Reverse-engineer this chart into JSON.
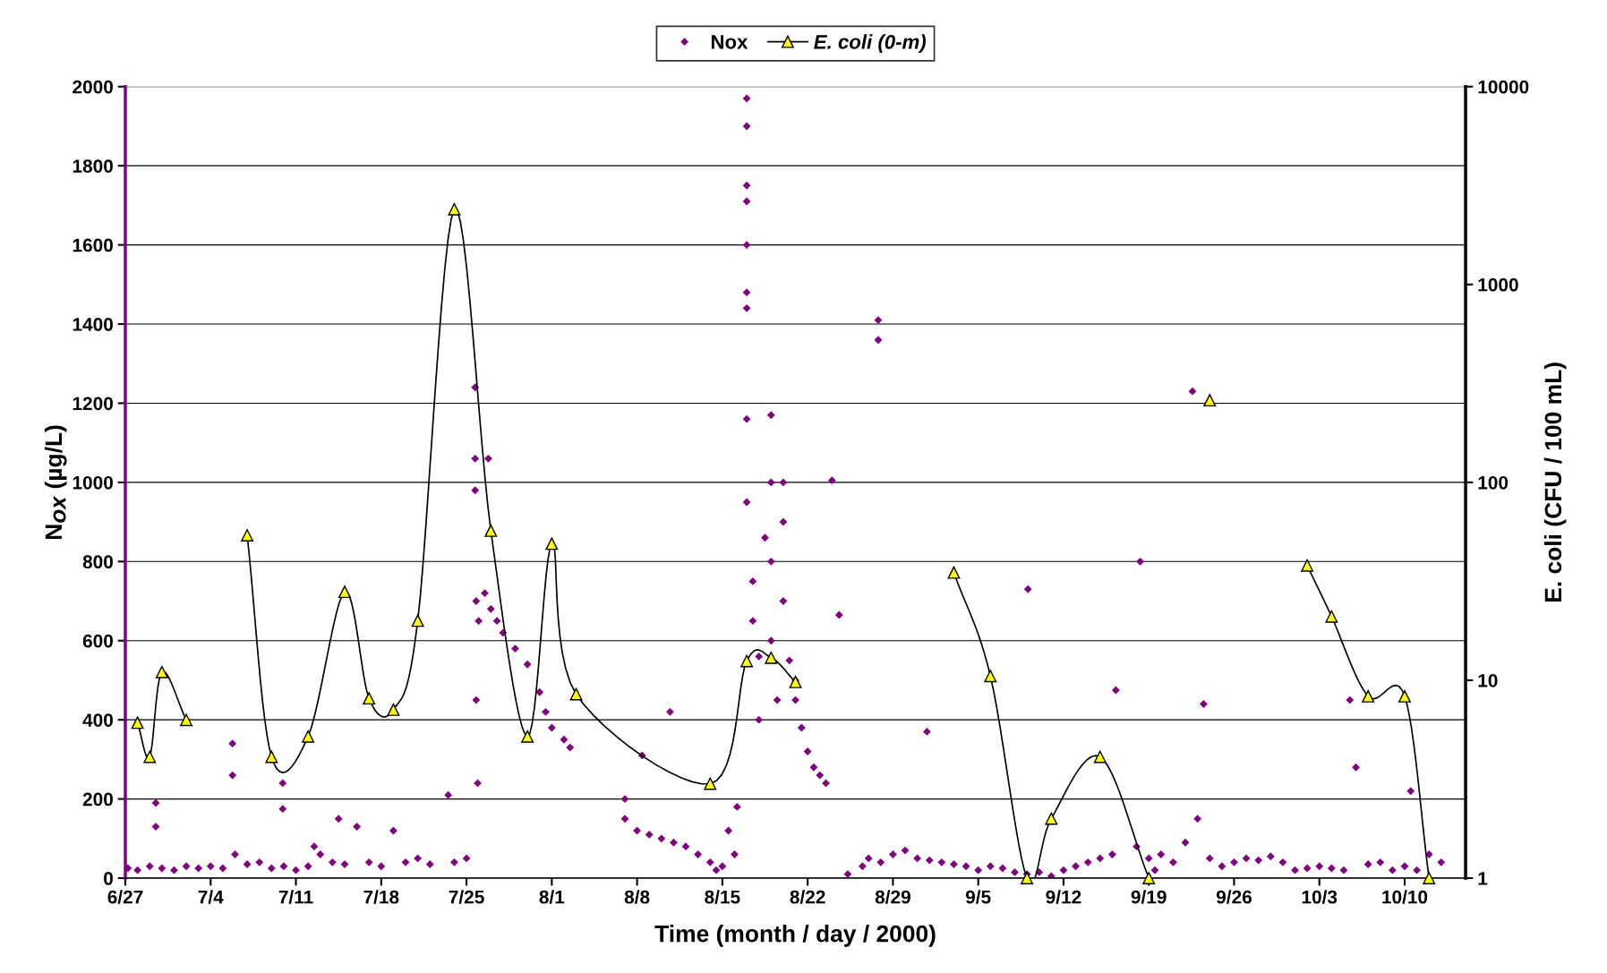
{
  "chart_data": {
    "type": "scatter",
    "xlabel": "Time (month / day / 2000)",
    "ylabel": "N$_{OX}$ (µg/L)",
    "y2label": "E. coli (CFU / 100 mL)",
    "xlim": [
      "2000-06-27",
      "2000-10-15"
    ],
    "xticks": [
      {
        "value": "2000-06-27",
        "label": "6/27"
      },
      {
        "value": "2000-07-04",
        "label": "7/4"
      },
      {
        "value": "2000-07-11",
        "label": "7/11"
      },
      {
        "value": "2000-07-18",
        "label": "7/18"
      },
      {
        "value": "2000-07-25",
        "label": "7/25"
      },
      {
        "value": "2000-08-01",
        "label": "8/1"
      },
      {
        "value": "2000-08-08",
        "label": "8/8"
      },
      {
        "value": "2000-08-15",
        "label": "8/15"
      },
      {
        "value": "2000-08-22",
        "label": "8/22"
      },
      {
        "value": "2000-08-29",
        "label": "8/29"
      },
      {
        "value": "2000-09-05",
        "label": "9/5"
      },
      {
        "value": "2000-09-12",
        "label": "9/12"
      },
      {
        "value": "2000-09-19",
        "label": "9/19"
      },
      {
        "value": "2000-09-26",
        "label": "9/26"
      },
      {
        "value": "2000-10-03",
        "label": "10/3"
      },
      {
        "value": "2000-10-10",
        "label": "10/10"
      }
    ],
    "ylim": [
      0,
      2000
    ],
    "yticks": [
      0,
      200,
      400,
      600,
      800,
      1000,
      1200,
      1400,
      1600,
      1800,
      2000
    ],
    "y2lim": [
      1,
      10000
    ],
    "y2ticks": [
      1,
      10,
      100,
      1000,
      10000
    ],
    "log": "y2",
    "grid": "y",
    "legend": "top",
    "series": [
      {
        "name": "Nox",
        "marker": "diamond",
        "color": "#800080",
        "x": [
          "2000-06-27T05:00",
          "2000-06-28",
          "2000-06-29",
          "2000-06-29T12:00",
          "2000-06-29T12:00",
          "2000-06-30",
          "2000-07-01",
          "2000-07-02",
          "2000-07-03",
          "2000-07-04",
          "2000-07-05",
          "2000-07-05T19:00",
          "2000-07-05T19:00",
          "2000-07-06",
          "2000-07-07",
          "2000-07-08",
          "2000-07-09",
          "2000-07-09T22:00",
          "2000-07-09T22:00",
          "2000-07-10",
          "2000-07-11",
          "2000-07-12",
          "2000-07-12T12:00",
          "2000-07-13",
          "2000-07-14",
          "2000-07-14T12:00",
          "2000-07-15",
          "2000-07-16",
          "2000-07-17",
          "2000-07-18",
          "2000-07-19",
          "2000-07-20",
          "2000-07-21",
          "2000-07-22",
          "2000-07-23T12:00",
          "2000-07-24",
          "2000-07-25",
          "2000-07-25T17:00",
          "2000-07-25T17:00",
          "2000-07-25T17:00",
          "2000-07-25T19:00",
          "2000-07-25T19:00",
          "2000-07-25T22:00",
          "2000-07-26",
          "2000-07-26T12:00",
          "2000-07-26T19:00",
          "2000-07-27",
          "2000-07-27T12:00",
          "2000-07-28",
          "2000-07-29",
          "2000-07-30",
          "2000-07-31",
          "2000-07-31T12:00",
          "2000-08-01",
          "2000-08-02",
          "2000-08-02T12:00",
          "2000-08-07",
          "2000-08-07",
          "2000-08-08",
          "2000-08-08T10:00",
          "2000-08-09",
          "2000-08-10",
          "2000-08-10T17:00",
          "2000-08-11",
          "2000-08-12",
          "2000-08-13",
          "2000-08-14",
          "2000-08-14T12:00",
          "2000-08-15",
          "2000-08-15T12:00",
          "2000-08-16",
          "2000-08-16T05:00",
          "2000-08-17",
          "2000-08-17",
          "2000-08-17",
          "2000-08-17",
          "2000-08-17",
          "2000-08-17",
          "2000-08-17",
          "2000-08-17",
          "2000-08-17",
          "2000-08-17T12:00",
          "2000-08-17T12:00",
          "2000-08-18",
          "2000-08-18",
          "2000-08-18T12:00",
          "2000-08-19",
          "2000-08-19",
          "2000-08-19",
          "2000-08-19",
          "2000-08-19T12:00",
          "2000-08-20",
          "2000-08-20",
          "2000-08-20",
          "2000-08-20T12:00",
          "2000-08-21",
          "2000-08-21",
          "2000-08-21T12:00",
          "2000-08-22",
          "2000-08-22T12:00",
          "2000-08-23",
          "2000-08-23T12:00",
          "2000-08-24",
          "2000-08-24T14:00",
          "2000-08-25T07:00",
          "2000-08-26T12:00",
          "2000-08-27",
          "2000-08-27T19:00",
          "2000-08-27T19:00",
          "2000-08-28",
          "2000-08-29",
          "2000-08-30",
          "2000-08-31",
          "2000-08-31T19:00",
          "2000-09-01",
          "2000-09-02",
          "2000-09-03",
          "2000-09-04",
          "2000-09-05",
          "2000-09-06",
          "2000-09-07",
          "2000-09-08",
          "2000-09-09",
          "2000-09-09T02:00",
          "2000-09-10",
          "2000-09-11",
          "2000-09-12",
          "2000-09-13",
          "2000-09-14",
          "2000-09-15",
          "2000-09-16",
          "2000-09-16T07:00",
          "2000-09-18",
          "2000-09-18T07:00",
          "2000-09-19",
          "2000-09-19T12:00",
          "2000-09-20",
          "2000-09-21",
          "2000-09-22",
          "2000-09-22T14:00",
          "2000-09-23",
          "2000-09-23T12:00",
          "2000-09-24",
          "2000-09-25",
          "2000-09-26",
          "2000-09-27",
          "2000-09-28",
          "2000-09-29",
          "2000-09-30",
          "2000-10-01",
          "2000-10-02",
          "2000-10-03",
          "2000-10-04",
          "2000-10-05",
          "2000-10-05T12:00",
          "2000-10-06",
          "2000-10-07",
          "2000-10-08",
          "2000-10-09",
          "2000-10-10",
          "2000-10-10T12:00",
          "2000-10-11",
          "2000-10-12",
          "2000-10-13"
        ],
        "values": [
          25,
          20,
          30,
          190,
          130,
          25,
          20,
          30,
          25,
          30,
          25,
          340,
          260,
          60,
          35,
          40,
          25,
          175,
          240,
          30,
          20,
          30,
          80,
          60,
          40,
          150,
          35,
          130,
          40,
          30,
          120,
          40,
          50,
          35,
          210,
          40,
          50,
          1240,
          1060,
          980,
          700,
          450,
          240,
          650,
          720,
          1060,
          680,
          650,
          620,
          580,
          540,
          470,
          420,
          380,
          350,
          330,
          150,
          200,
          120,
          310,
          110,
          100,
          420,
          90,
          80,
          60,
          40,
          20,
          30,
          120,
          60,
          180,
          1970,
          1900,
          1750,
          1710,
          1600,
          1480,
          1440,
          1160,
          950,
          750,
          650,
          560,
          400,
          860,
          1170,
          1000,
          800,
          600,
          450,
          1000,
          900,
          700,
          550,
          500,
          450,
          380,
          320,
          280,
          260,
          240,
          1005,
          665,
          10,
          30,
          50,
          1410,
          1360,
          40,
          60,
          70,
          50,
          370,
          45,
          40,
          35,
          30,
          20,
          30,
          25,
          15,
          10,
          730,
          15,
          5,
          20,
          30,
          40,
          50,
          60,
          475,
          80,
          800,
          50,
          20,
          60,
          40,
          90,
          1230,
          150,
          440,
          50,
          30,
          40,
          50,
          45,
          55,
          40,
          20,
          25,
          30,
          25,
          20,
          450,
          280,
          35,
          40,
          20,
          30,
          220,
          20,
          60,
          40
        ]
      },
      {
        "name": "E. coli (0-m)",
        "type": "line",
        "marker": "triangle",
        "color": "#ffff00",
        "axis": "y2",
        "x": [
          "2000-06-28",
          "2000-06-29",
          "2000-06-30",
          "2000-07-02",
          "2000-07-04",
          "2000-07-07",
          "2000-07-09",
          "2000-07-12",
          "2000-07-15",
          "2000-07-17",
          "2000-07-19",
          "2000-07-21",
          "2000-07-24",
          "2000-07-27",
          "2000-07-30",
          "2000-08-01",
          "2000-08-03",
          "2000-08-14",
          "2000-08-17",
          "2000-08-19",
          "2000-08-21",
          "2000-08-28",
          "2000-09-03",
          "2000-09-06",
          "2000-09-09",
          "2000-09-11",
          "2000-09-15",
          "2000-09-19",
          "2000-09-22",
          "2000-09-24",
          "2000-09-28",
          "2000-10-02",
          "2000-10-04",
          "2000-10-07",
          "2000-10-10",
          "2000-10-12"
        ],
        "values": [
          6.1,
          4.1,
          11,
          6.3,
          null,
          54,
          4.1,
          5.2,
          28,
          8.1,
          7.1,
          20,
          2400,
          57,
          5.2,
          49,
          8.5,
          3.0,
          12.5,
          13,
          9.8,
          null,
          35,
          10.5,
          1,
          2.0,
          4.1,
          1,
          null,
          260,
          null,
          38,
          21,
          8.3,
          8.3,
          1
        ]
      }
    ]
  }
}
